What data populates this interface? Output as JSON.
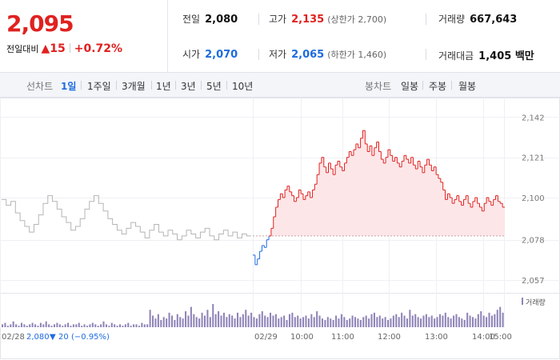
{
  "quote": {
    "price": "2,095",
    "change_label": "전일대비",
    "change_arrow": "▲",
    "change_value": "15",
    "change_pct": "+0.72%",
    "stats": [
      {
        "key": "전일",
        "value": "2,080",
        "color": "normal",
        "extra": ""
      },
      {
        "key": "고가",
        "value": "2,135",
        "color": "red",
        "extra": "(상한가 2,700)"
      },
      {
        "key": "거래량",
        "value": "667,643",
        "color": "normal",
        "extra": ""
      },
      {
        "key": "시가",
        "value": "2,070",
        "color": "blue",
        "extra": ""
      },
      {
        "key": "저가",
        "value": "2,065",
        "color": "blue",
        "extra": "(하한가 1,460)"
      },
      {
        "key": "거래대금",
        "value": "1,405 백만",
        "color": "normal",
        "extra": ""
      }
    ]
  },
  "tabs": {
    "line_label": "선차트",
    "line_items": [
      "1일",
      "1주일",
      "3개월",
      "1년",
      "3년",
      "5년",
      "10년"
    ],
    "active": "1일",
    "candle_label": "봉차트",
    "candle_items": [
      "일봉",
      "주봉",
      "월봉"
    ]
  },
  "colors": {
    "up": "#e0211f",
    "down": "#1e6be0",
    "prev": "#b5b5b5",
    "volume": "#8f84b8",
    "fill": "#fde3e5"
  },
  "chart_data": {
    "type": "line",
    "y_ticks": [
      "2,142",
      "2,121",
      "2,100",
      "2,078",
      "2,057"
    ],
    "y_range": [
      2052,
      2148
    ],
    "base_value": 2080,
    "x_labels": [
      "02/28",
      "02/29",
      "10:00",
      "11:00",
      "12:00",
      "13:00",
      "14:00",
      "15:00"
    ],
    "prev_day_summary": {
      "date": "02/28",
      "close": "2,080",
      "arrow": "▼",
      "change": "20",
      "pct": "(−0.95%)"
    },
    "volume_legend": "거래량",
    "series": [
      {
        "values": [
          2099,
          2096,
          2098,
          2092,
          2088,
          2085,
          2082,
          2086,
          2091,
          2097,
          2101,
          2098,
          2094,
          2090,
          2087,
          2083,
          2085,
          2089,
          2094,
          2098,
          2101,
          2097,
          2093,
          2089,
          2086,
          2083,
          2081,
          2084,
          2087,
          2085,
          2082,
          2079,
          2083,
          2086,
          2082,
          2080,
          2083,
          2081,
          2078,
          2080,
          2083,
          2081,
          2079,
          2082,
          2084,
          2080,
          2078,
          2081,
          2083,
          2080,
          2082,
          2079,
          2081,
          2080
        ]
      },
      {
        "values": [
          2070,
          2065,
          2068,
          2072,
          2075,
          2074,
          2078,
          2080,
          2084,
          2090,
          2095,
          2099,
          2102,
          2100,
          2104,
          2106,
          2103,
          2101,
          2098,
          2100,
          2104,
          2102,
          2099,
          2101,
          2103,
          2100,
          2104,
          2107,
          2112,
          2118,
          2121,
          2116,
          2113,
          2118,
          2115,
          2112,
          2117,
          2119,
          2116,
          2114,
          2118,
          2121,
          2124,
          2122,
          2125,
          2128,
          2126,
          2131,
          2135,
          2128,
          2124,
          2127,
          2122,
          2126,
          2129,
          2124,
          2120,
          2118,
          2121,
          2125,
          2122,
          2119,
          2121,
          2118,
          2116,
          2119,
          2122,
          2120,
          2118,
          2121,
          2117,
          2115,
          2119,
          2116,
          2113,
          2117,
          2120,
          2117,
          2114,
          2116,
          2112,
          2110,
          2108,
          2104,
          2099,
          2102,
          2100,
          2097,
          2099,
          2101,
          2098,
          2096,
          2099,
          2101,
          2097,
          2095,
          2098,
          2100,
          2097,
          2095,
          2093,
          2097,
          2100,
          2098,
          2096,
          2099,
          2101,
          2098,
          2097,
          2095
        ]
      }
    ],
    "volume": [
      2,
      3,
      1,
      2,
      4,
      2,
      1,
      3,
      2,
      1,
      2,
      3,
      2,
      1,
      3,
      2,
      4,
      2,
      1,
      2,
      3,
      2,
      1,
      2,
      3,
      1,
      2,
      2,
      3,
      1,
      2,
      1,
      2,
      3,
      2,
      1,
      2,
      4,
      2,
      1,
      3,
      2,
      1,
      2,
      1,
      2,
      3,
      1,
      2,
      2,
      1,
      3,
      2,
      2,
      12,
      8,
      6,
      9,
      5,
      7,
      6,
      10,
      8,
      5,
      9,
      7,
      6,
      11,
      8,
      14,
      9,
      7,
      6,
      10,
      8,
      12,
      7,
      16,
      9,
      11,
      8,
      10,
      7,
      9,
      8,
      6,
      10,
      7,
      9,
      12,
      8,
      10,
      7,
      6,
      9,
      11,
      8,
      7,
      10,
      8,
      9,
      6,
      7,
      8,
      5,
      9,
      10,
      7,
      8,
      6,
      7,
      8,
      6,
      9,
      7,
      11,
      8,
      6,
      5,
      7,
      6,
      5,
      8,
      6,
      9,
      7,
      5,
      6,
      8,
      7,
      6,
      5,
      7,
      8,
      6,
      9,
      10,
      7,
      8,
      6,
      7,
      5,
      6,
      8,
      9,
      7,
      10,
      8,
      6,
      12,
      8,
      9,
      7,
      6,
      8,
      9,
      7,
      8,
      6,
      7,
      9,
      8,
      10,
      7,
      6,
      8,
      9,
      7,
      6,
      5,
      10,
      8,
      7,
      6,
      9,
      11,
      8,
      7,
      10,
      8,
      9,
      12,
      14,
      10
    ]
  }
}
